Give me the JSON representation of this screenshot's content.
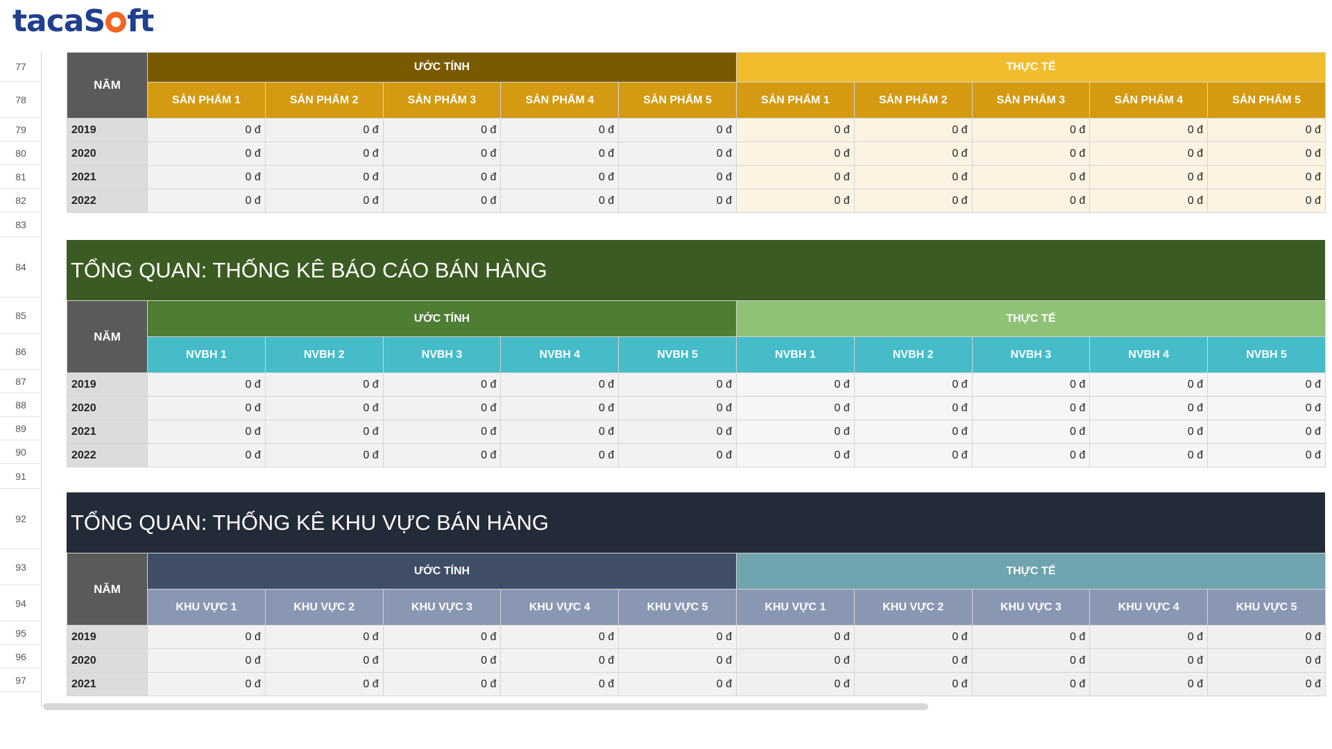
{
  "logo": {
    "part1": "taca",
    "part2": "S",
    "part3": "ft"
  },
  "row_numbers": [
    "77",
    "78",
    "79",
    "80",
    "81",
    "82",
    "83",
    "84",
    "85",
    "86",
    "87",
    "88",
    "89",
    "90",
    "91",
    "92",
    "93",
    "94",
    "95",
    "96",
    "97"
  ],
  "table_products": {
    "year_header": "NĂM",
    "estimate_header": "ƯỚC TÍNH",
    "actual_header": "THỰC TẾ",
    "estimate_cols": [
      "SẢN PHẨM 1",
      "SẢN PHẨM 2",
      "SẢN PHẨM 3",
      "SẢN PHẨM 4",
      "SẢN PHẨM 5"
    ],
    "actual_cols": [
      "SẢN PHẨM 1",
      "SẢN PHẨM 2",
      "SẢN PHẨM 3",
      "SẢN PHẨM 4",
      "SẢN PHẨM 5"
    ],
    "rows": [
      {
        "year": "2019",
        "values": [
          "0 đ",
          "0 đ",
          "0 đ",
          "0 đ",
          "0 đ",
          "0 đ",
          "0 đ",
          "0 đ",
          "0 đ",
          "0 đ"
        ]
      },
      {
        "year": "2020",
        "values": [
          "0 đ",
          "0 đ",
          "0 đ",
          "0 đ",
          "0 đ",
          "0 đ",
          "0 đ",
          "0 đ",
          "0 đ",
          "0 đ"
        ]
      },
      {
        "year": "2021",
        "values": [
          "0 đ",
          "0 đ",
          "0 đ",
          "0 đ",
          "0 đ",
          "0 đ",
          "0 đ",
          "0 đ",
          "0 đ",
          "0 đ"
        ]
      },
      {
        "year": "2022",
        "values": [
          "0 đ",
          "0 đ",
          "0 đ",
          "0 đ",
          "0 đ",
          "0 đ",
          "0 đ",
          "0 đ",
          "0 đ",
          "0 đ"
        ]
      }
    ]
  },
  "banner_sales": "TỔNG QUAN: THỐNG KÊ BÁO CÁO BÁN HÀNG",
  "table_staff": {
    "year_header": "NĂM",
    "estimate_header": "ƯỚC TÍNH",
    "actual_header": "THỰC TẾ",
    "estimate_cols": [
      "NVBH 1",
      "NVBH 2",
      "NVBH 3",
      "NVBH 4",
      "NVBH 5"
    ],
    "actual_cols": [
      "NVBH 1",
      "NVBH 2",
      "NVBH 3",
      "NVBH 4",
      "NVBH 5"
    ],
    "rows": [
      {
        "year": "2019",
        "values": [
          "0 đ",
          "0 đ",
          "0 đ",
          "0 đ",
          "0 đ",
          "0 đ",
          "0 đ",
          "0 đ",
          "0 đ",
          "0 đ"
        ]
      },
      {
        "year": "2020",
        "values": [
          "0 đ",
          "0 đ",
          "0 đ",
          "0 đ",
          "0 đ",
          "0 đ",
          "0 đ",
          "0 đ",
          "0 đ",
          "0 đ"
        ]
      },
      {
        "year": "2021",
        "values": [
          "0 đ",
          "0 đ",
          "0 đ",
          "0 đ",
          "0 đ",
          "0 đ",
          "0 đ",
          "0 đ",
          "0 đ",
          "0 đ"
        ]
      },
      {
        "year": "2022",
        "values": [
          "0 đ",
          "0 đ",
          "0 đ",
          "0 đ",
          "0 đ",
          "0 đ",
          "0 đ",
          "0 đ",
          "0 đ",
          "0 đ"
        ]
      }
    ]
  },
  "banner_regions": "TỔNG QUAN: THỐNG KÊ KHU VỰC BÁN HÀNG",
  "table_regions": {
    "year_header": "NĂM",
    "estimate_header": "ƯỚC TÍNH",
    "actual_header": "THỰC TẾ",
    "estimate_cols": [
      "KHU VỰC 1",
      "KHU VỰC 2",
      "KHU VỰC 3",
      "KHU VỰC 4",
      "KHU VỰC 5"
    ],
    "actual_cols": [
      "KHU VỰC 1",
      "KHU VỰC 2",
      "KHU VỰC 3",
      "KHU VỰC 4",
      "KHU VỰC 5"
    ],
    "rows": [
      {
        "year": "2019",
        "values": [
          "0 đ",
          "0 đ",
          "0 đ",
          "0 đ",
          "0 đ",
          "0 đ",
          "0 đ",
          "0 đ",
          "0 đ",
          "0 đ"
        ]
      },
      {
        "year": "2020",
        "values": [
          "0 đ",
          "0 đ",
          "0 đ",
          "0 đ",
          "0 đ",
          "0 đ",
          "0 đ",
          "0 đ",
          "0 đ",
          "0 đ"
        ]
      },
      {
        "year": "2021",
        "values": [
          "0 đ",
          "0 đ",
          "0 đ",
          "0 đ",
          "0 đ",
          "0 đ",
          "0 đ",
          "0 đ",
          "0 đ",
          "0 đ"
        ]
      }
    ]
  }
}
